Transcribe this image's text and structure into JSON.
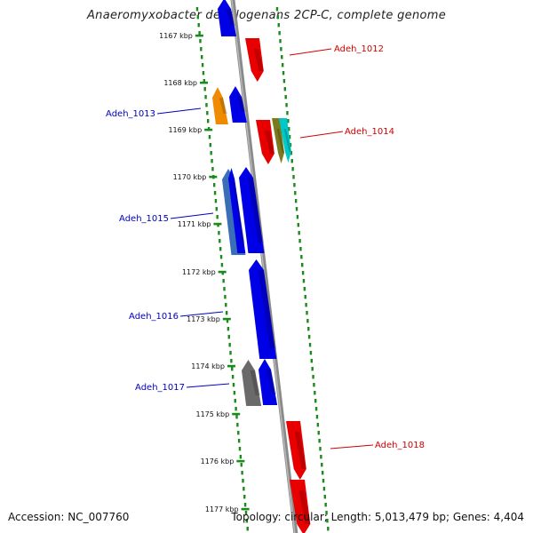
{
  "title": "Anaeromyxobacter dehalogenans 2CP-C, complete genome",
  "footer": {
    "accession": "Accession: NC_007760",
    "summary": "Topology: circular; Length: 5,013,479 bp; Genes: 4,404"
  },
  "colors": {
    "red": "#e80000",
    "blue": "#0000e6",
    "orange": "#ef8b00",
    "olive": "#7a7a1e",
    "cyan": "#00c8c8",
    "steel": "#3a6fb8",
    "gray": "#6a6a6a",
    "backbone": "#8a8a8a",
    "dots": "#1a8a1a",
    "label_blue": "#0000c0",
    "label_red": "#d00000"
  },
  "scale_ticks": [
    "1167 kbp",
    "1168 kbp",
    "1169 kbp",
    "1170 kbp",
    "1171 kbp",
    "1172 kbp",
    "1173 kbp",
    "1174 kbp",
    "1175 kbp",
    "1176 kbp",
    "1177 kbp"
  ],
  "gene_labels": [
    {
      "text": "Adeh_1012",
      "color": "red"
    },
    {
      "text": "Adeh_1013",
      "color": "blue"
    },
    {
      "text": "Adeh_1014",
      "color": "red"
    },
    {
      "text": "Adeh_1015",
      "color": "blue"
    },
    {
      "text": "Adeh_1016",
      "color": "blue"
    },
    {
      "text": "Adeh_1017",
      "color": "blue"
    },
    {
      "text": "Adeh_1018",
      "color": "red"
    }
  ],
  "genes": [
    {
      "strand": "-",
      "color": "blue",
      "lane": "inner"
    },
    {
      "strand": "+",
      "color": "red",
      "lane": "outer"
    },
    {
      "strand": "-",
      "color": "orange",
      "lane": "inner"
    },
    {
      "strand": "-",
      "color": "blue",
      "lane": "inner"
    },
    {
      "strand": "+",
      "color": "red",
      "lane": "outer"
    },
    {
      "strand": "+",
      "color": "olive",
      "lane": "outer"
    },
    {
      "strand": "+",
      "color": "cyan",
      "lane": "outer"
    },
    {
      "strand": "-",
      "color": "steel",
      "lane": "inner"
    },
    {
      "strand": "-",
      "color": "blue",
      "lane": "inner"
    },
    {
      "strand": "-",
      "color": "blue",
      "lane": "inner"
    },
    {
      "strand": "-",
      "color": "gray",
      "lane": "inner"
    },
    {
      "strand": "-",
      "color": "blue",
      "lane": "inner"
    },
    {
      "strand": "+",
      "color": "red",
      "lane": "outer"
    },
    {
      "strand": "+",
      "color": "red",
      "lane": "outer"
    }
  ]
}
